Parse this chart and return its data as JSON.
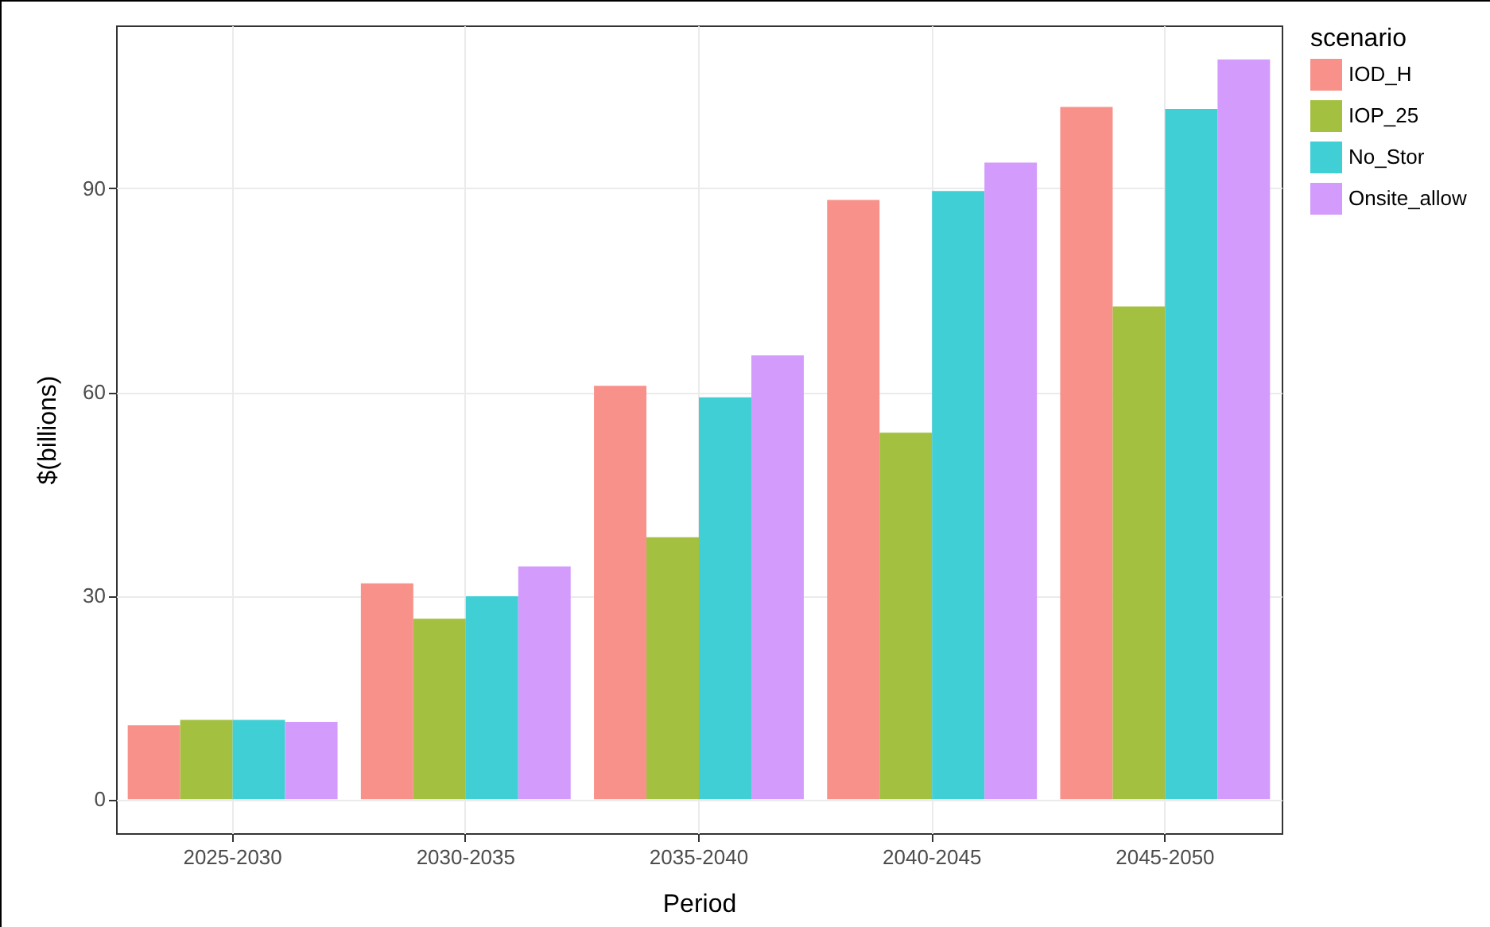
{
  "chart_data": {
    "type": "bar",
    "xlabel": "Period",
    "ylabel": "$(billions)",
    "legend_title": "scenario",
    "categories": [
      "2025-2030",
      "2030-2035",
      "2035-2040",
      "2040-2045",
      "2045-2050"
    ],
    "series": [
      {
        "name": "IOD_H",
        "color": "#f8918a",
        "values": [
          10.9,
          31.8,
          60.9,
          88.3,
          102
        ]
      },
      {
        "name": "IOP_25",
        "color": "#a3c040",
        "values": [
          11.7,
          26.6,
          38.6,
          54,
          72.6
        ]
      },
      {
        "name": "No_Stor",
        "color": "#40cfd4",
        "values": [
          11.7,
          29.9,
          59.2,
          89.6,
          101.7
        ]
      },
      {
        "name": "Onsite_allow",
        "color": "#d39bfb",
        "values": [
          11.4,
          34.3,
          65.4,
          93.8,
          109
        ]
      }
    ],
    "ylim": [
      -5,
      114
    ],
    "yticks": [
      0,
      30,
      60,
      90
    ],
    "grid": true,
    "legend": "right"
  }
}
